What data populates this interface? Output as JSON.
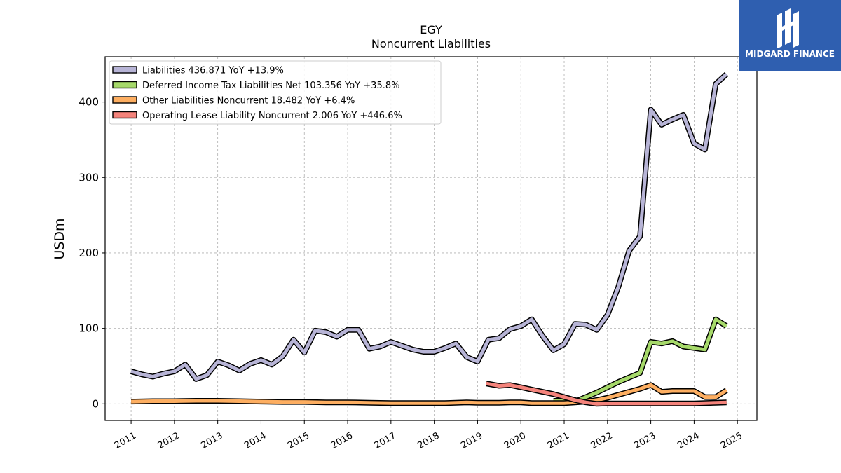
{
  "brand": {
    "name": "MIDGARD FINANCE",
    "bg_color": "#2f5fb0",
    "icon": "midgard-logo-icon"
  },
  "chart_data": {
    "type": "line",
    "title": "EGY",
    "subtitle": "Noncurrent  Liabilities",
    "xlabel": "",
    "ylabel": "USDm",
    "xlim": [
      2010.4,
      2025.45
    ],
    "ylim": [
      -22,
      460
    ],
    "yticks": [
      0,
      100,
      200,
      300,
      400
    ],
    "xticks": [
      "2011",
      "2012",
      "2013",
      "2014",
      "2015",
      "2016",
      "2017",
      "2018",
      "2019",
      "2020",
      "2021",
      "2022",
      "2023",
      "2024",
      "2025"
    ],
    "grid": true,
    "legend_position": "top-left",
    "series": [
      {
        "name": "Liabilities  436.871 YoY +13.9%",
        "color": "#b7b4d6",
        "x": [
          2011.0,
          2011.25,
          2011.5,
          2011.75,
          2012.0,
          2012.25,
          2012.5,
          2012.75,
          2013.0,
          2013.25,
          2013.5,
          2013.75,
          2014.0,
          2014.25,
          2014.5,
          2014.75,
          2015.0,
          2015.25,
          2015.5,
          2015.75,
          2016.0,
          2016.25,
          2016.5,
          2016.75,
          2017.0,
          2017.25,
          2017.5,
          2017.75,
          2018.0,
          2018.25,
          2018.5,
          2018.75,
          2019.0,
          2019.25,
          2019.5,
          2019.75,
          2020.0,
          2020.25,
          2020.5,
          2020.75,
          2021.0,
          2021.25,
          2021.5,
          2021.75,
          2022.0,
          2022.25,
          2022.5,
          2022.75,
          2023.0,
          2023.25,
          2023.5,
          2023.75,
          2024.0,
          2024.25,
          2024.5,
          2024.75
        ],
        "values": [
          43,
          39,
          36,
          40,
          43,
          52,
          33,
          38,
          56,
          51,
          44,
          53,
          58,
          52,
          63,
          85,
          68,
          97,
          95,
          89,
          98,
          98,
          73,
          76,
          82,
          77,
          72,
          69,
          69,
          74,
          80,
          62,
          56,
          85,
          87,
          99,
          103,
          112,
          90,
          71,
          79,
          106,
          105,
          98,
          118,
          155,
          203,
          222,
          390,
          370,
          377,
          383,
          345,
          337,
          424,
          437
        ]
      },
      {
        "name": "Deferred Income Tax Liabilities Net  103.356 YoY +35.8%",
        "color": "#a6d96a",
        "x": [
          2020.75,
          2021.0,
          2021.25,
          2021.75,
          2022.0,
          2022.25,
          2022.5,
          2022.75,
          2023.0,
          2023.25,
          2023.5,
          2023.75,
          2024.0,
          2024.25,
          2024.5,
          2024.75
        ],
        "values": [
          4,
          4,
          3,
          15,
          22,
          29,
          35,
          41,
          82,
          80,
          83,
          76,
          74,
          72,
          112,
          103
        ]
      },
      {
        "name": "Other Liabilities Noncurrent  18.482 YoY +6.4%",
        "color": "#fdae61",
        "x": [
          2011.0,
          2011.5,
          2012.0,
          2012.5,
          2013.0,
          2013.5,
          2014.0,
          2014.5,
          2015.0,
          2015.5,
          2016.0,
          2016.5,
          2017.0,
          2017.5,
          2018.0,
          2018.25,
          2018.5,
          2018.75,
          2019.0,
          2019.25,
          2019.5,
          2019.75,
          2020.0,
          2020.25,
          2020.5,
          2020.75,
          2021.0,
          2021.25,
          2021.5,
          2021.75,
          2022.0,
          2022.25,
          2022.5,
          2022.75,
          2023.0,
          2023.25,
          2023.5,
          2023.75,
          2024.0,
          2024.25,
          2024.5,
          2024.75
        ],
        "values": [
          3,
          3.5,
          3.5,
          4,
          4,
          3.5,
          3,
          2.5,
          2.5,
          2,
          2,
          1.5,
          1,
          1,
          1,
          1,
          1.5,
          2,
          1.5,
          1.5,
          1.5,
          2,
          2,
          1,
          1,
          1,
          1,
          2,
          3,
          5,
          8,
          12,
          16,
          20,
          25,
          16,
          17,
          17,
          17,
          9,
          9,
          18
        ]
      },
      {
        "name": "Operating Lease Liability Noncurrent  2.006 YoY +446.6%",
        "color": "#f4837b",
        "x": [
          2019.2,
          2019.5,
          2019.75,
          2020.0,
          2020.25,
          2020.5,
          2020.75,
          2021.0,
          2021.25,
          2021.5,
          2021.75,
          2022.0,
          2022.25,
          2022.5,
          2022.75,
          2023.0,
          2023.25,
          2023.5,
          2023.75,
          2024.0,
          2024.25,
          2024.5,
          2024.75
        ],
        "values": [
          27,
          24,
          25,
          22,
          19,
          16,
          13,
          9,
          5,
          2,
          0,
          0.5,
          0.5,
          0.5,
          0.5,
          0.5,
          0.5,
          0.5,
          0.5,
          0.5,
          1,
          1.5,
          2
        ]
      }
    ]
  }
}
